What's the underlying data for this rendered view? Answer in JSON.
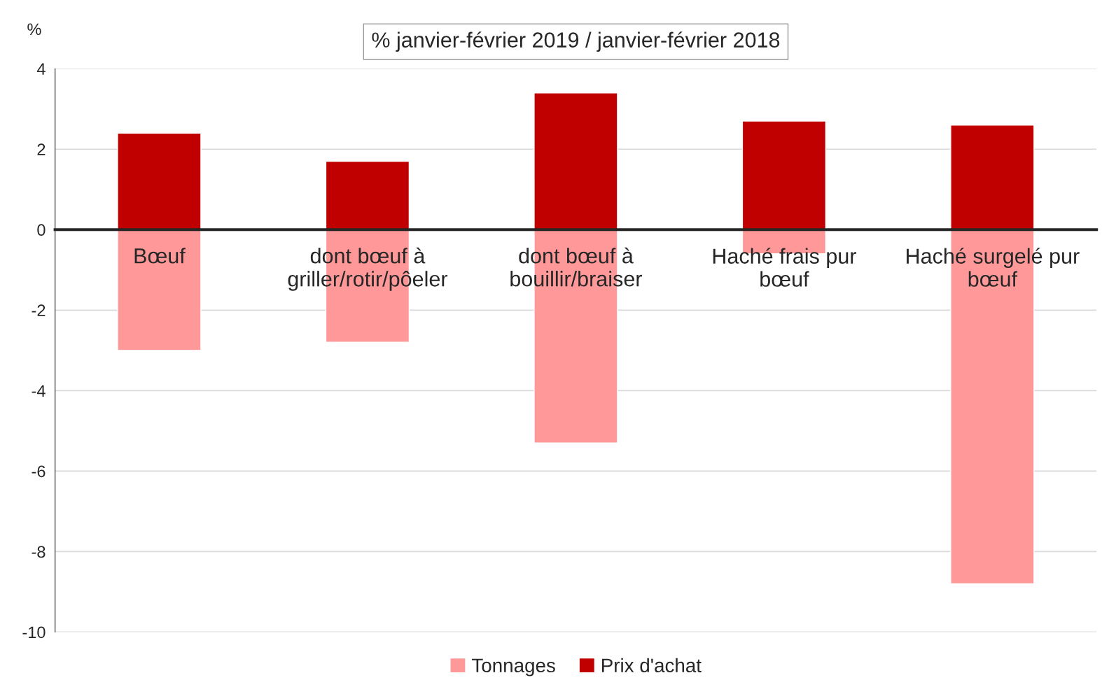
{
  "chart_data": {
    "type": "bar",
    "title": "% janvier-février 2019 / janvier-février 2018",
    "ylabel": "%",
    "categories": [
      "Bœuf",
      "dont bœuf à\ngriller/rotir/pôeler",
      "dont bœuf à\nbouillir/braiser",
      "Haché frais pur\nbœuf",
      "Haché surgelé pur\nbœuf"
    ],
    "series": [
      {
        "name": "Tonnages",
        "color": "#ff9999",
        "values": [
          -3.0,
          -2.8,
          -5.3,
          -0.6,
          -8.8
        ]
      },
      {
        "name": "Prix d'achat",
        "color": "#c00000",
        "values": [
          2.4,
          1.7,
          3.4,
          2.7,
          2.6
        ]
      }
    ],
    "ylim": [
      -10,
      4
    ],
    "yticks": [
      -10,
      -8,
      -6,
      -4,
      -2,
      0,
      2,
      4
    ],
    "grid": "y",
    "stacked": true,
    "legend": "bottom"
  }
}
